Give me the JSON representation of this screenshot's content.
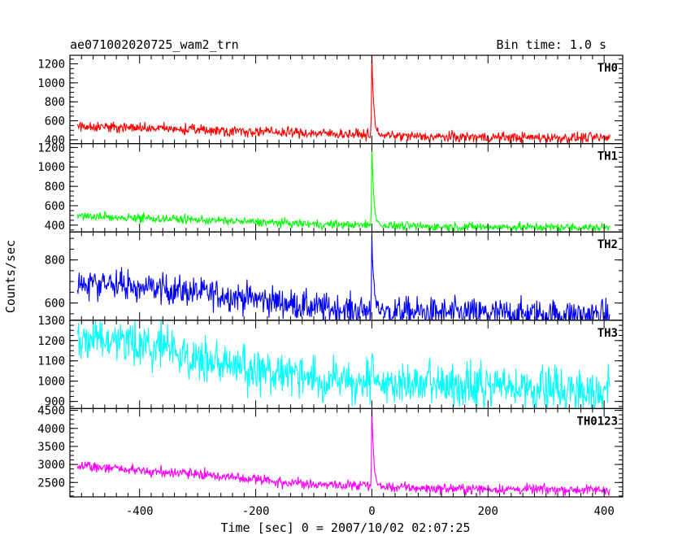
{
  "header": {
    "title": "ae071002020725_wam2_trn",
    "bin_time": "Bin time: 1.0 s"
  },
  "chart_data": {
    "type": "line",
    "title": "ae071002020725_wam2_trn",
    "subtitle": "Bin time: 1.0 s",
    "xlabel": "Time [sec] 0 = 2007/10/02 02:07:25",
    "ylabel": "Counts/sec",
    "xlim": [
      -520,
      432
    ],
    "x_ticks": [
      -400,
      -200,
      0,
      200,
      400
    ],
    "grid": false,
    "bin_seconds": 1.0,
    "x_range_data": [
      -507,
      410
    ],
    "panels": [
      {
        "name": "TH0",
        "color": "#ff0000",
        "ylim": [
          360,
          1290
        ],
        "y_ticks": [
          400,
          600,
          800,
          1000,
          1200
        ],
        "trend": [
          [
            -507,
            545
          ],
          [
            -300,
            505
          ],
          [
            -100,
            470
          ],
          [
            -10,
            455
          ],
          [
            100,
            430
          ],
          [
            410,
            420
          ]
        ],
        "noise": 28,
        "peak": {
          "x": 0,
          "value": 1290
        }
      },
      {
        "name": "TH1",
        "color": "#00ff00",
        "ylim": [
          330,
          1240
        ],
        "y_ticks": [
          400,
          600,
          800,
          1000,
          1200
        ],
        "trend": [
          [
            -507,
            495
          ],
          [
            -300,
            455
          ],
          [
            -100,
            410
          ],
          [
            -10,
            400
          ],
          [
            100,
            385
          ],
          [
            410,
            375
          ]
        ],
        "noise": 22,
        "peak": {
          "x": 0,
          "value": 1230
        }
      },
      {
        "name": "TH2",
        "color": "#0000ff",
        "ylim": [
          520,
          930
        ],
        "y_ticks": [
          600,
          800
        ],
        "trend": [
          [
            -507,
            700
          ],
          [
            -300,
            650
          ],
          [
            -200,
            620
          ],
          [
            -100,
            580
          ],
          [
            -10,
            565
          ],
          [
            100,
            555
          ],
          [
            410,
            545
          ]
        ],
        "noise": 35,
        "peak": {
          "x": 0,
          "value": 930
        }
      },
      {
        "name": "TH3",
        "color": "#00ffff",
        "ylim": [
          865,
          1300
        ],
        "y_ticks": [
          900,
          1000,
          1100,
          1200,
          1300
        ],
        "trend": [
          [
            -507,
            1210
          ],
          [
            -400,
            1180
          ],
          [
            -300,
            1120
          ],
          [
            -200,
            1055
          ],
          [
            -100,
            1010
          ],
          [
            0,
            990
          ],
          [
            200,
            970
          ],
          [
            410,
            955
          ]
        ],
        "noise": 55,
        "peak": {
          "x": 0,
          "value": 1130
        }
      },
      {
        "name": "TH0123",
        "color": "#ff00ff",
        "ylim": [
          2100,
          4550
        ],
        "y_ticks": [
          2500,
          3000,
          3500,
          4000,
          4500
        ],
        "trend": [
          [
            -507,
            2960
          ],
          [
            -300,
            2730
          ],
          [
            -200,
            2580
          ],
          [
            -100,
            2450
          ],
          [
            -10,
            2400
          ],
          [
            100,
            2330
          ],
          [
            410,
            2290
          ]
        ],
        "noise": 70,
        "peak": {
          "x": 0,
          "value": 4550
        }
      }
    ]
  }
}
